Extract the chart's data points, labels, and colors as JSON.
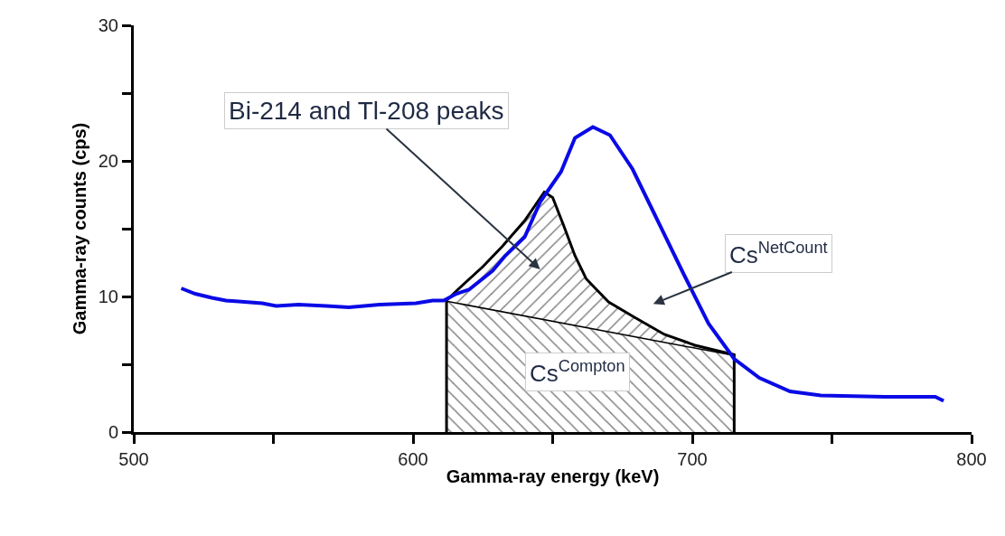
{
  "chart_data": {
    "type": "line",
    "xlabel": "Gamma-ray energy (keV)",
    "ylabel": "Gamma-ray counts (cps)",
    "xlim": [
      500,
      800
    ],
    "ylim": [
      0,
      30
    ],
    "xticks": [
      500,
      {
        "value": 550,
        "label": null
      },
      600,
      {
        "value": 650,
        "label": null
      },
      700,
      {
        "value": 750,
        "label": null
      },
      800
    ],
    "yticks": [
      0,
      {
        "value": 5,
        "label": null
      },
      10,
      {
        "value": 15,
        "label": null
      },
      20,
      {
        "value": 25,
        "label": null
      },
      30
    ],
    "series": [
      {
        "type": "area",
        "color": "#000000",
        "x": [
          612,
          612,
          715,
          715
        ],
        "values": [
          0,
          9.7,
          5.7,
          0
        ]
      },
      {
        "type": "area",
        "color": "#000000",
        "x": [
          612,
          616,
          625,
          632,
          640,
          647,
          650,
          654,
          658,
          662,
          670,
          679,
          690,
          701,
          715
        ],
        "values": [
          9.7,
          10.5,
          12.2,
          13.7,
          15.6,
          17.7,
          17.3,
          15.2,
          13.0,
          11.3,
          9.6,
          8.5,
          7.2,
          6.4,
          5.7
        ]
      },
      {
        "color": "#0a0ae6",
        "x": [
          517,
          522,
          528,
          533,
          546,
          551,
          559,
          569,
          577,
          588,
          601,
          607,
          611,
          615.5,
          620,
          628.5,
          633,
          640,
          645.6,
          653,
          658,
          664.4,
          670.5,
          678.6,
          686.4,
          696.8,
          705.8,
          715,
          724,
          735,
          746,
          769,
          787,
          790
        ],
        "values": [
          10.6,
          10.2,
          9.9,
          9.7,
          9.5,
          9.3,
          9.4,
          9.3,
          9.2,
          9.4,
          9.5,
          9.7,
          9.7,
          10.2,
          10.5,
          11.9,
          13.0,
          14.4,
          17.0,
          19.2,
          21.7,
          22.5,
          21.9,
          19.4,
          16.1,
          11.7,
          8.0,
          5.4,
          4.0,
          3.0,
          2.7,
          2.6,
          2.6,
          2.3
        ]
      }
    ],
    "annotations": [
      "Bi-214 and Tl-208 peaks",
      "Cs$^{NetCount}$",
      "Cs$^{Compton}$"
    ]
  }
}
